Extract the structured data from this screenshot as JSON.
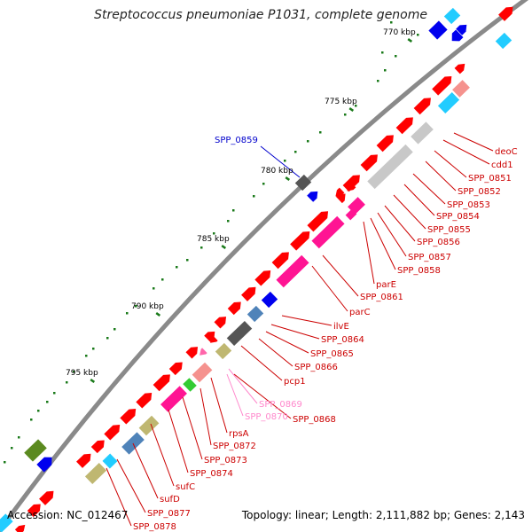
{
  "header": {
    "title": "Streptococcus pneumoniae P1031, complete genome"
  },
  "footer": {
    "accession": "Accession: NC_012467",
    "summary": "Topology: linear; Length: 2,111,882 bp; Genes: 2,143"
  },
  "ticks": [
    {
      "label": "770 kbp"
    },
    {
      "label": "775 kbp"
    },
    {
      "label": "780 kbp"
    },
    {
      "label": "785 kbp"
    },
    {
      "label": "790 kbp"
    },
    {
      "label": "795 kbp"
    }
  ],
  "colors": {
    "backbone": "#8a8a8a",
    "red": "#ff0000",
    "pink": "#ff66aa",
    "magenta": "#ff1493",
    "cyan": "#22ccff",
    "blue": "#0000ee",
    "grey": "#c8c8c8",
    "darkgrey": "#555555",
    "steel": "#4f83b9",
    "olive": "#bfb771",
    "green": "#5b8a1f",
    "lime": "#33cc33",
    "salmon": "#f5928e",
    "label_red": "#cc0000",
    "label_blue": "#0000cc",
    "label_pink": "#ff88cc"
  },
  "gene_labels": [
    {
      "name": "deoC"
    },
    {
      "name": "cdd1"
    },
    {
      "name": "SPP_0851"
    },
    {
      "name": "SPP_0852"
    },
    {
      "name": "SPP_0853"
    },
    {
      "name": "SPP_0854"
    },
    {
      "name": "SPP_0855"
    },
    {
      "name": "SPP_0856"
    },
    {
      "name": "SPP_0857"
    },
    {
      "name": "SPP_0858"
    },
    {
      "name": "parE"
    },
    {
      "name": "SPP_0861"
    },
    {
      "name": "parC"
    },
    {
      "name": "ilvE"
    },
    {
      "name": "SPP_0864"
    },
    {
      "name": "SPP_0865"
    },
    {
      "name": "SPP_0866"
    },
    {
      "name": "pcp1"
    },
    {
      "name": "SPP_0869"
    },
    {
      "name": "SPP_0870"
    },
    {
      "name": "SPP_0868"
    },
    {
      "name": "rpsA"
    },
    {
      "name": "SPP_0872"
    },
    {
      "name": "SPP_0873"
    },
    {
      "name": "SPP_0874"
    },
    {
      "name": "sufC"
    },
    {
      "name": "sufD"
    },
    {
      "name": "SPP_0877"
    },
    {
      "name": "SPP_0878"
    }
  ],
  "outer_label": {
    "name": "SPP_0859"
  }
}
